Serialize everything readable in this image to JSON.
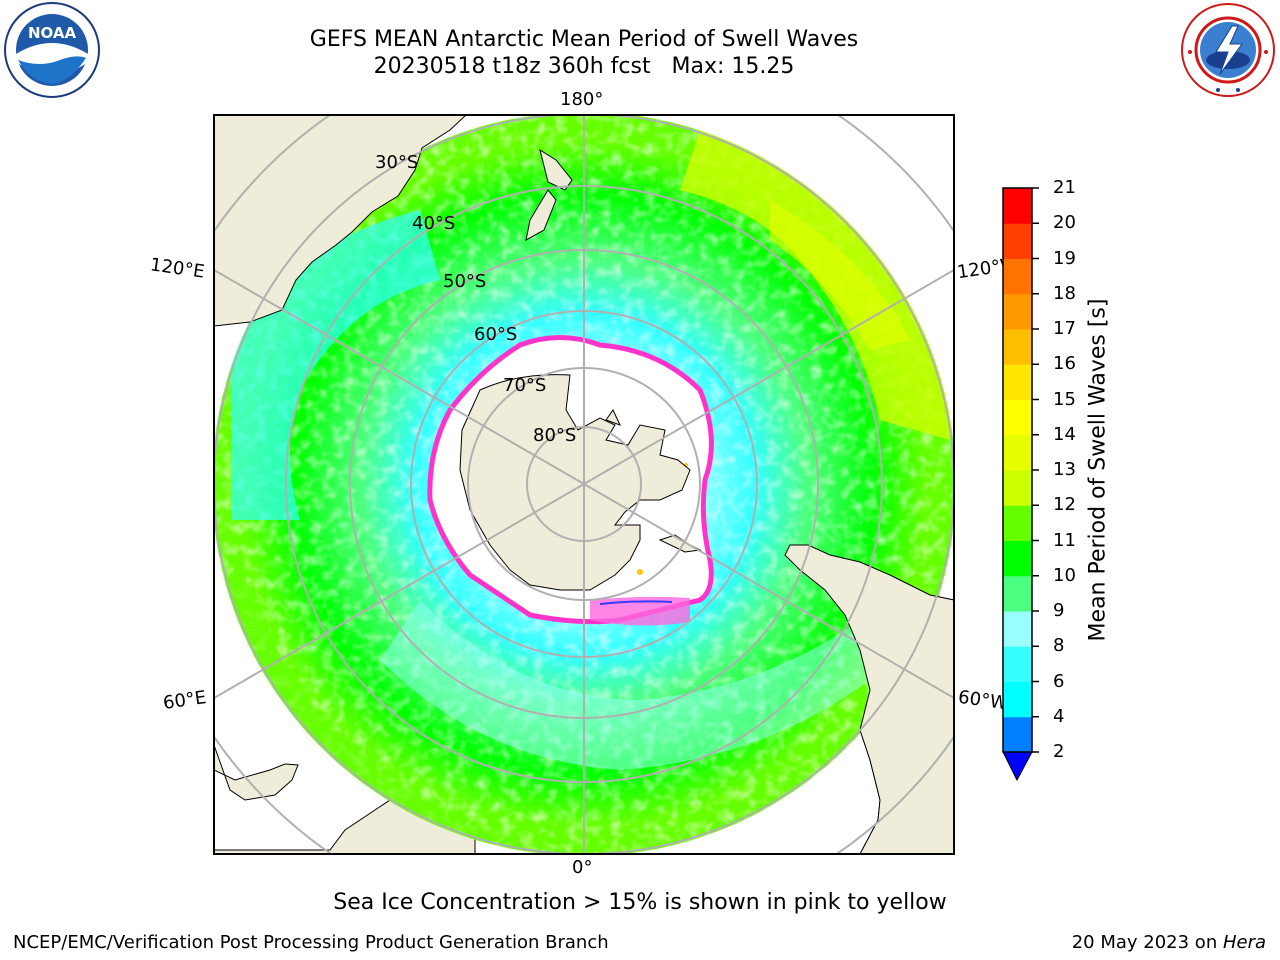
{
  "title": {
    "line1": "GEFS MEAN Antarctic Mean Period of Swell Waves",
    "line2": "20230518 t18z 360h fcst   Max: 15.25"
  },
  "map": {
    "projection": "south polar stereographic",
    "longitude_labels": {
      "top": "180°",
      "bottom": "0°",
      "upper_left": "120°E",
      "upper_right": "120°W",
      "lower_left": "60°E",
      "lower_right": "60°W"
    },
    "latitude_labels": [
      "30°S",
      "40°S",
      "50°S",
      "60°S",
      "70°S",
      "80°S"
    ],
    "colors": {
      "land": "#efedd9",
      "grid": "#b0b0b0",
      "ice_edge": "#ff33cc",
      "ice_inner": "#ffffff",
      "ice_yellow": "#ffc800"
    }
  },
  "colorbar": {
    "label": "Mean Period of Swell Waves [s]",
    "ticks": [
      "2",
      "4",
      "6",
      "8",
      "9",
      "10",
      "11",
      "12",
      "13",
      "14",
      "15",
      "16",
      "17",
      "18",
      "19",
      "20",
      "21"
    ],
    "level_colors": [
      "#0080ff",
      "#00ffff",
      "#33ffff",
      "#99ffff",
      "#4dff80",
      "#00ff00",
      "#66ff00",
      "#ccff00",
      "#e6ff00",
      "#ffff00",
      "#ffe600",
      "#ffbf00",
      "#ff9900",
      "#ff7300",
      "#ff4000",
      "#ff0000"
    ],
    "extend_min_color": "#0000ff"
  },
  "footer": {
    "ice_note": "Sea Ice Concentration > 15% is shown in pink to yellow",
    "credit_left": "NCEP/EMC/Verification Post Processing Product Generation Branch",
    "credit_right_prefix": "20 May 2023 on ",
    "credit_right_host": "Hera"
  },
  "logos": {
    "left": "noaa-logo",
    "right": "national-weather-service-logo"
  }
}
